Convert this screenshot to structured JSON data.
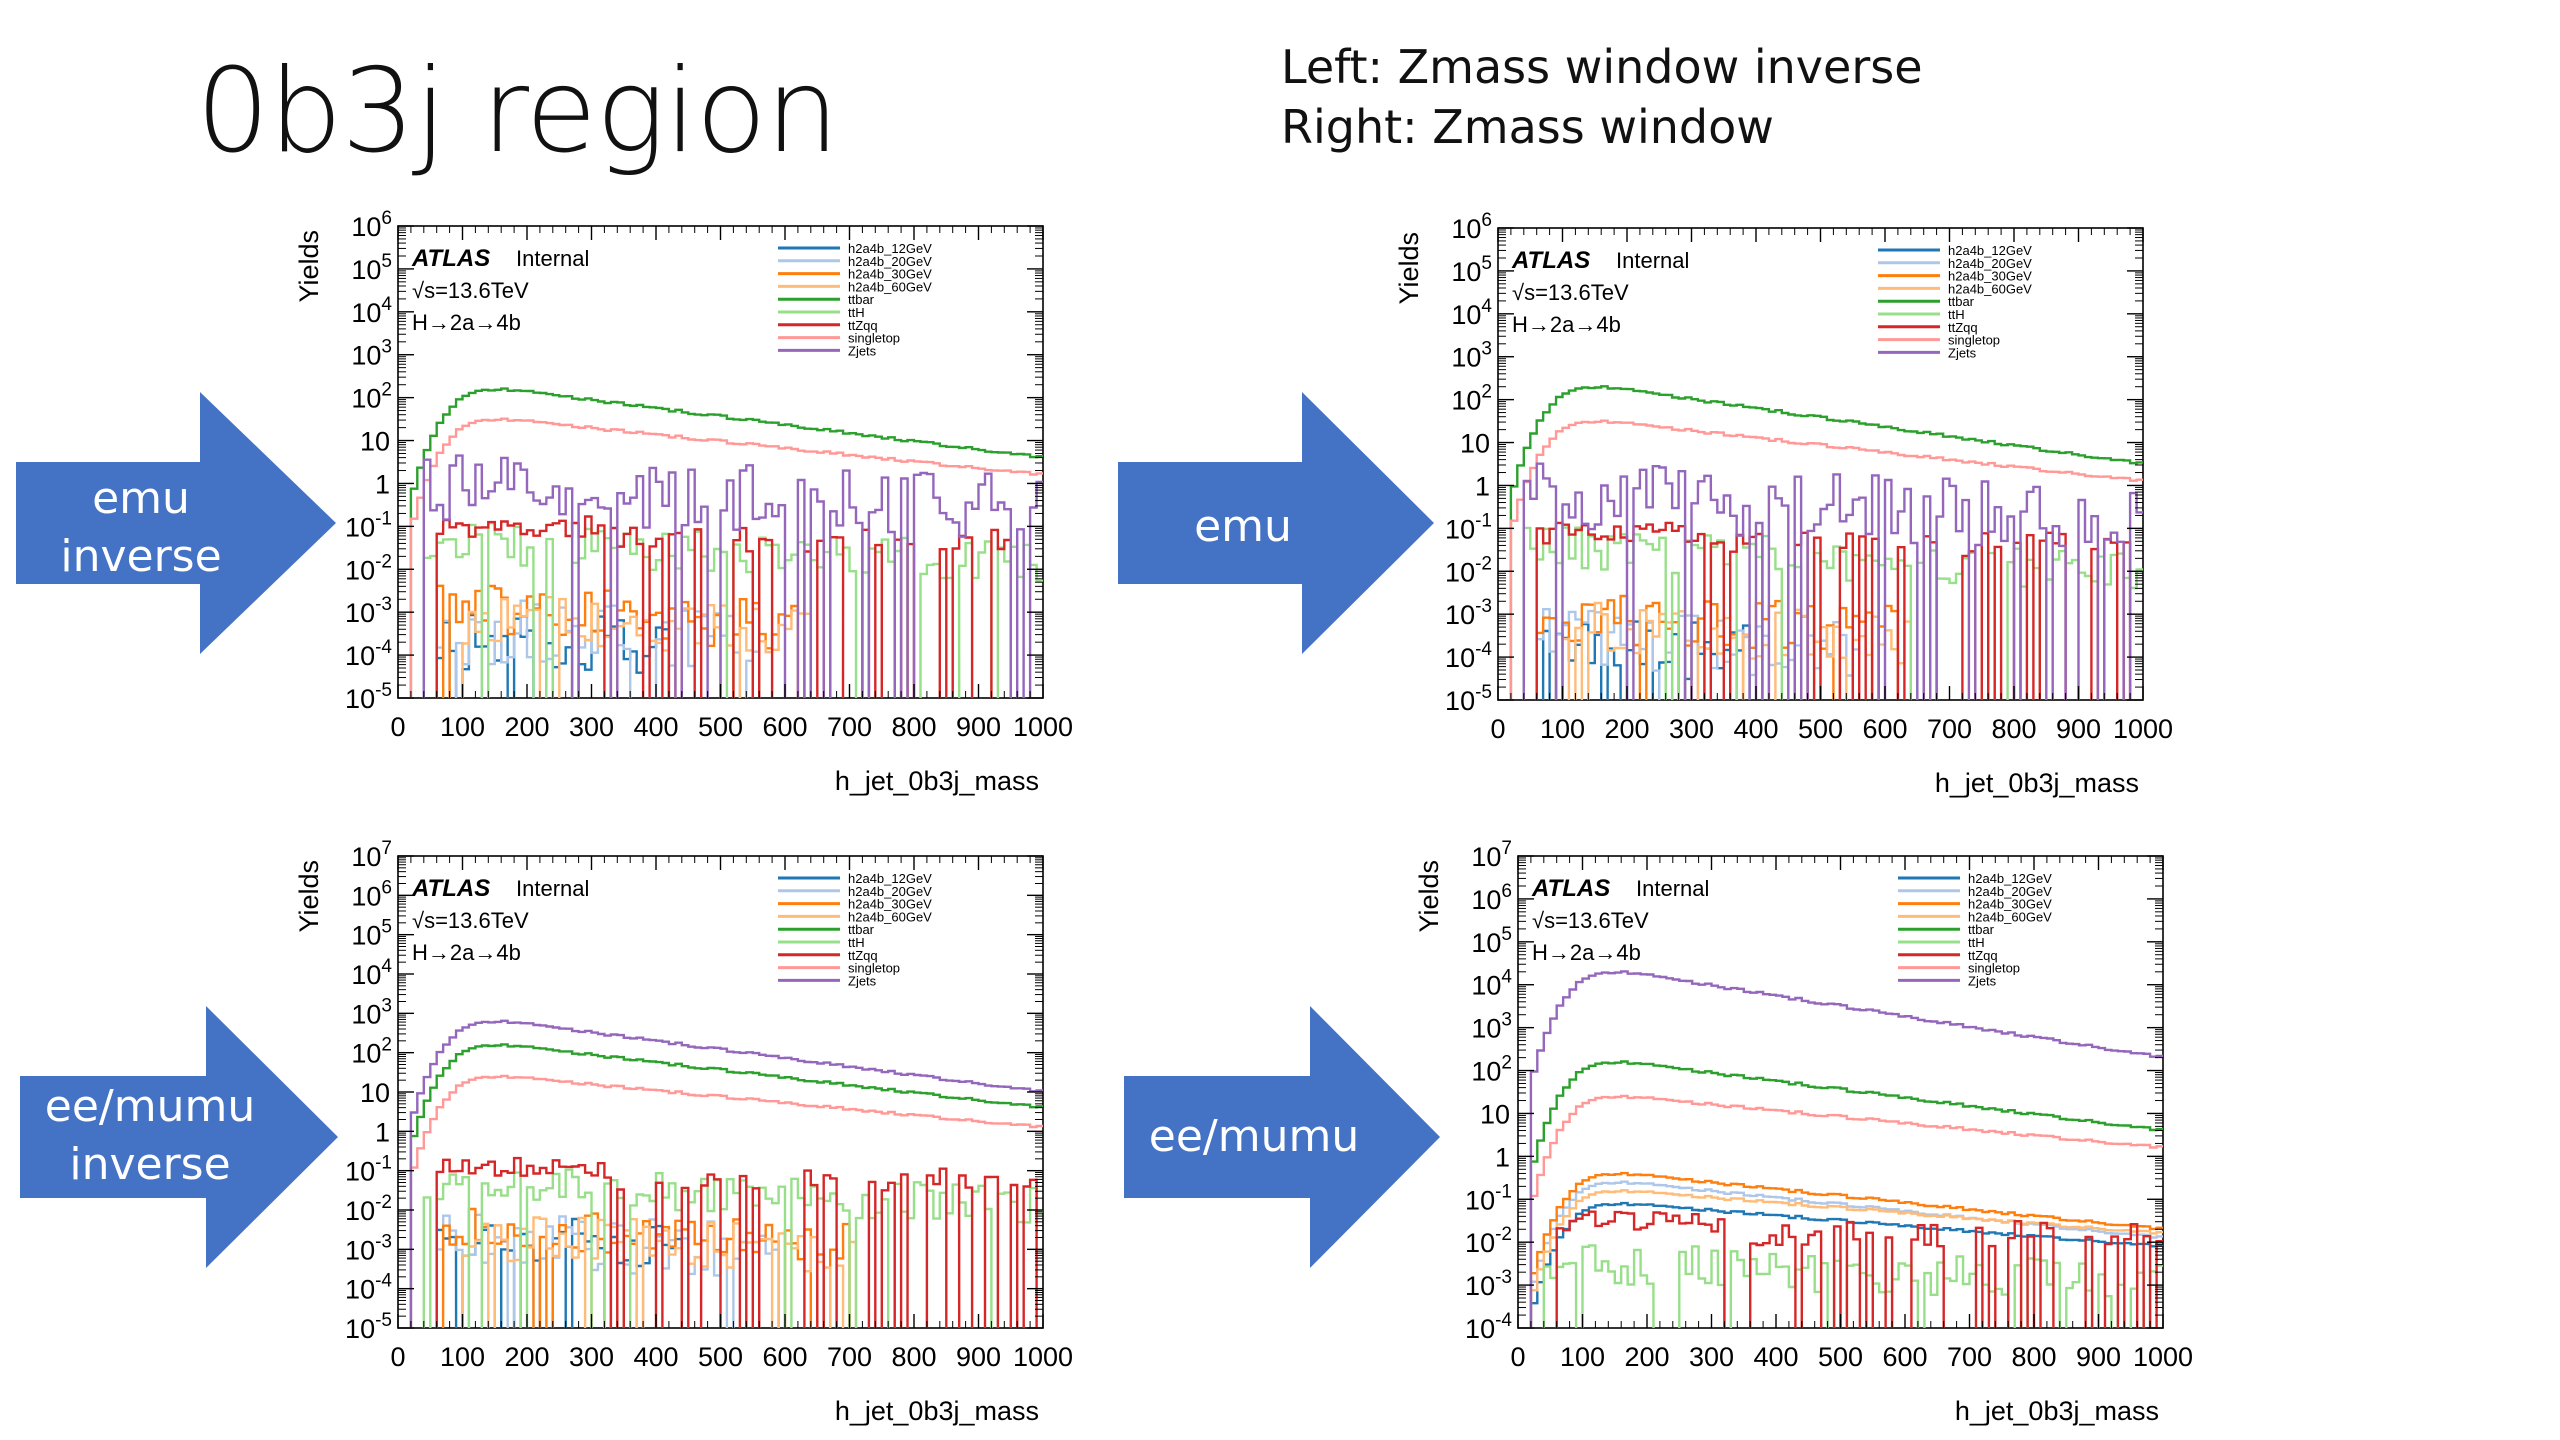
{
  "slide": {
    "title": "0b3j region",
    "note_left": "Left: Zmass window inverse",
    "note_right": "Right: Zmass window"
  },
  "arrows": [
    {
      "id": "a1",
      "lines": [
        "emu",
        "inverse"
      ]
    },
    {
      "id": "a2",
      "lines": [
        "emu"
      ]
    },
    {
      "id": "a3",
      "lines": [
        "ee/mumu",
        "inverse"
      ]
    },
    {
      "id": "a4",
      "lines": [
        "ee/mumu"
      ]
    }
  ],
  "colors": {
    "arrow_fill": "#4472C4",
    "h2a4b_12GeV": "#1f77b4",
    "h2a4b_20GeV": "#aec7e8",
    "h2a4b_30GeV": "#ff7f0e",
    "h2a4b_60GeV": "#ffbb78",
    "ttbar": "#2ca02c",
    "ttH": "#98df8a",
    "ttZqq": "#d62728",
    "singletop": "#ff9896",
    "Zjets": "#9467bd"
  },
  "chart_data": [
    {
      "id": "emu_inverse",
      "type": "line",
      "xlabel": "h_jet_0b3j_mass",
      "ylabel": "Yields",
      "xlim": [
        0,
        1000
      ],
      "yscale": "log",
      "ylim_exp": [
        -5,
        6
      ],
      "x_ticks": [
        "0",
        "100",
        "200",
        "300",
        "400",
        "500",
        "600",
        "700",
        "800",
        "900",
        "1000"
      ],
      "y_tick_labels": [
        {
          "b": "10",
          "e": "-5"
        },
        {
          "b": "10",
          "e": "-4"
        },
        {
          "b": "10",
          "e": "-3"
        },
        {
          "b": "10",
          "e": "-2"
        },
        {
          "b": "10",
          "e": "-1"
        },
        {
          "b": "1",
          "e": ""
        },
        {
          "b": "10",
          "e": ""
        },
        {
          "b": "10",
          "e": "2"
        },
        {
          "b": "10",
          "e": "3"
        },
        {
          "b": "10",
          "e": "4"
        },
        {
          "b": "10",
          "e": "5"
        },
        {
          "b": "10",
          "e": "6"
        }
      ],
      "atlas": "ATLAS",
      "atlas_status": "Internal",
      "energy": "√s=13.6TeV",
      "process": "H→2a→4b",
      "legend_position": "top-right",
      "series": [
        {
          "name": "h2a4b_12GeV",
          "style": "noise",
          "level": -3.6,
          "amp": 0.7,
          "start": 60,
          "end": 420,
          "seed": 11
        },
        {
          "name": "h2a4b_20GeV",
          "style": "noise",
          "level": -3.4,
          "amp": 0.8,
          "start": 60,
          "end": 560,
          "seed": 12
        },
        {
          "name": "h2a4b_30GeV",
          "style": "noise",
          "level": -2.9,
          "amp": 0.6,
          "start": 60,
          "end": 620,
          "seed": 13
        },
        {
          "name": "h2a4b_60GeV",
          "style": "noise",
          "level": -3.1,
          "amp": 0.6,
          "start": 100,
          "end": 640,
          "seed": 14
        },
        {
          "name": "ttbar",
          "style": "smooth",
          "peak": 2.2,
          "tail": 0.6
        },
        {
          "name": "ttH",
          "style": "noise",
          "level": -1.3,
          "amp": 0.5,
          "start": 40,
          "end": 1000,
          "seed": 15
        },
        {
          "name": "ttZqq",
          "style": "spiky",
          "level": -1.0,
          "start": 60,
          "end": 1000,
          "seed": 16
        },
        {
          "name": "singletop",
          "style": "smooth",
          "peak": 1.5,
          "tail": 0.2
        },
        {
          "name": "Zjets",
          "style": "noise",
          "level": 0.0,
          "amp": 0.8,
          "start": 40,
          "end": 1000,
          "seed": 17
        }
      ]
    },
    {
      "id": "emu",
      "type": "line",
      "xlabel": "h_jet_0b3j_mass",
      "ylabel": "Yields",
      "xlim": [
        0,
        1000
      ],
      "yscale": "log",
      "ylim_exp": [
        -5,
        6
      ],
      "x_ticks": [
        "0",
        "100",
        "200",
        "300",
        "400",
        "500",
        "600",
        "700",
        "800",
        "900",
        "1000"
      ],
      "y_tick_labels": [
        {
          "b": "10",
          "e": "-5"
        },
        {
          "b": "10",
          "e": "-4"
        },
        {
          "b": "10",
          "e": "-3"
        },
        {
          "b": "10",
          "e": "-2"
        },
        {
          "b": "10",
          "e": "-1"
        },
        {
          "b": "1",
          "e": ""
        },
        {
          "b": "10",
          "e": ""
        },
        {
          "b": "10",
          "e": "2"
        },
        {
          "b": "10",
          "e": "3"
        },
        {
          "b": "10",
          "e": "4"
        },
        {
          "b": "10",
          "e": "5"
        },
        {
          "b": "10",
          "e": "6"
        }
      ],
      "atlas": "ATLAS",
      "atlas_status": "Internal",
      "energy": "√s=13.6TeV",
      "process": "H→2a→4b",
      "legend_position": "top-right",
      "series": [
        {
          "name": "h2a4b_12GeV",
          "style": "noise",
          "level": -3.7,
          "amp": 0.7,
          "start": 60,
          "end": 400,
          "seed": 21
        },
        {
          "name": "h2a4b_20GeV",
          "style": "noise",
          "level": -3.5,
          "amp": 0.7,
          "start": 60,
          "end": 560,
          "seed": 22
        },
        {
          "name": "h2a4b_30GeV",
          "style": "noise",
          "level": -3.0,
          "amp": 0.6,
          "start": 60,
          "end": 620,
          "seed": 23
        },
        {
          "name": "h2a4b_60GeV",
          "style": "noise",
          "level": -3.2,
          "amp": 0.6,
          "start": 100,
          "end": 640,
          "seed": 24
        },
        {
          "name": "ttbar",
          "style": "smooth",
          "peak": 2.3,
          "tail": 0.5
        },
        {
          "name": "ttH",
          "style": "noise",
          "level": -1.4,
          "amp": 0.5,
          "start": 40,
          "end": 1000,
          "seed": 25
        },
        {
          "name": "ttZqq",
          "style": "spiky",
          "level": -1.1,
          "start": 60,
          "end": 1000,
          "seed": 26
        },
        {
          "name": "singletop",
          "style": "smooth",
          "peak": 1.5,
          "tail": 0.1
        },
        {
          "name": "Zjets",
          "style": "noise",
          "level": -0.2,
          "amp": 0.8,
          "start": 40,
          "end": 1000,
          "seed": 27
        }
      ]
    },
    {
      "id": "eemumu_inverse",
      "type": "line",
      "xlabel": "h_jet_0b3j_mass",
      "ylabel": "Yields",
      "xlim": [
        0,
        1000
      ],
      "yscale": "log",
      "ylim_exp": [
        -5,
        7
      ],
      "x_ticks": [
        "0",
        "100",
        "200",
        "300",
        "400",
        "500",
        "600",
        "700",
        "800",
        "900",
        "1000"
      ],
      "y_tick_labels": [
        {
          "b": "10",
          "e": "-5"
        },
        {
          "b": "10",
          "e": "-4"
        },
        {
          "b": "10",
          "e": "-3"
        },
        {
          "b": "10",
          "e": "-2"
        },
        {
          "b": "10",
          "e": "-1"
        },
        {
          "b": "1",
          "e": ""
        },
        {
          "b": "10",
          "e": ""
        },
        {
          "b": "10",
          "e": "2"
        },
        {
          "b": "10",
          "e": "3"
        },
        {
          "b": "10",
          "e": "4"
        },
        {
          "b": "10",
          "e": "5"
        },
        {
          "b": "10",
          "e": "6"
        },
        {
          "b": "10",
          "e": "7"
        }
      ],
      "atlas": "ATLAS",
      "atlas_status": "Internal",
      "energy": "√s=13.6TeV",
      "process": "H→2a→4b",
      "legend_position": "top-right",
      "series": [
        {
          "name": "h2a4b_12GeV",
          "style": "noise",
          "level": -2.6,
          "amp": 0.6,
          "start": 60,
          "end": 440,
          "seed": 31
        },
        {
          "name": "h2a4b_20GeV",
          "style": "noise",
          "level": -2.7,
          "amp": 0.7,
          "start": 60,
          "end": 600,
          "seed": 32
        },
        {
          "name": "h2a4b_30GeV",
          "style": "noise",
          "level": -2.4,
          "amp": 0.5,
          "start": 60,
          "end": 700,
          "seed": 33
        },
        {
          "name": "h2a4b_60GeV",
          "style": "noise",
          "level": -2.6,
          "amp": 0.6,
          "start": 100,
          "end": 720,
          "seed": 34
        },
        {
          "name": "ttbar",
          "style": "smooth",
          "peak": 2.2,
          "tail": 0.6
        },
        {
          "name": "ttH",
          "style": "noise",
          "level": -1.3,
          "amp": 0.5,
          "start": 40,
          "end": 1000,
          "seed": 35
        },
        {
          "name": "ttZqq",
          "style": "spiky",
          "level": -0.9,
          "start": 60,
          "end": 1000,
          "seed": 36
        },
        {
          "name": "singletop",
          "style": "smooth",
          "peak": 1.4,
          "tail": 0.1
        },
        {
          "name": "Zjets",
          "style": "smooth",
          "peak": 2.8,
          "tail": 1.0
        }
      ]
    },
    {
      "id": "eemumu",
      "type": "line",
      "xlabel": "h_jet_0b3j_mass",
      "ylabel": "Yields",
      "xlim": [
        0,
        1000
      ],
      "yscale": "log",
      "ylim_exp": [
        -4,
        7
      ],
      "x_ticks": [
        "0",
        "100",
        "200",
        "300",
        "400",
        "500",
        "600",
        "700",
        "800",
        "900",
        "1000"
      ],
      "y_tick_labels": [
        {
          "b": "10",
          "e": "-4"
        },
        {
          "b": "10",
          "e": "-3"
        },
        {
          "b": "10",
          "e": "-2"
        },
        {
          "b": "10",
          "e": "-1"
        },
        {
          "b": "1",
          "e": ""
        },
        {
          "b": "10",
          "e": ""
        },
        {
          "b": "10",
          "e": "2"
        },
        {
          "b": "10",
          "e": "3"
        },
        {
          "b": "10",
          "e": "4"
        },
        {
          "b": "10",
          "e": "5"
        },
        {
          "b": "10",
          "e": "6"
        },
        {
          "b": "10",
          "e": "7"
        }
      ],
      "atlas": "ATLAS",
      "atlas_status": "Internal",
      "energy": "√s=13.6TeV",
      "process": "H→2a→4b",
      "legend_position": "top-right",
      "series": [
        {
          "name": "h2a4b_12GeV",
          "style": "smooth",
          "peak": -1.1,
          "tail": -2.1
        },
        {
          "name": "h2a4b_20GeV",
          "style": "smooth",
          "peak": -0.6,
          "tail": -1.9
        },
        {
          "name": "h2a4b_30GeV",
          "style": "smooth",
          "peak": -0.4,
          "tail": -1.7
        },
        {
          "name": "h2a4b_60GeV",
          "style": "smooth",
          "peak": -0.8,
          "tail": -1.8
        },
        {
          "name": "ttbar",
          "style": "smooth",
          "peak": 2.2,
          "tail": 0.6
        },
        {
          "name": "ttH",
          "style": "noise",
          "level": -2.4,
          "amp": 0.5,
          "start": 40,
          "end": 1000,
          "seed": 45
        },
        {
          "name": "ttZqq",
          "style": "spiky",
          "level": -1.5,
          "start": 60,
          "end": 1000,
          "seed": 46
        },
        {
          "name": "singletop",
          "style": "smooth",
          "peak": 1.4,
          "tail": 0.2
        },
        {
          "name": "Zjets",
          "style": "smooth",
          "peak": 4.3,
          "tail": 2.3
        }
      ]
    }
  ]
}
